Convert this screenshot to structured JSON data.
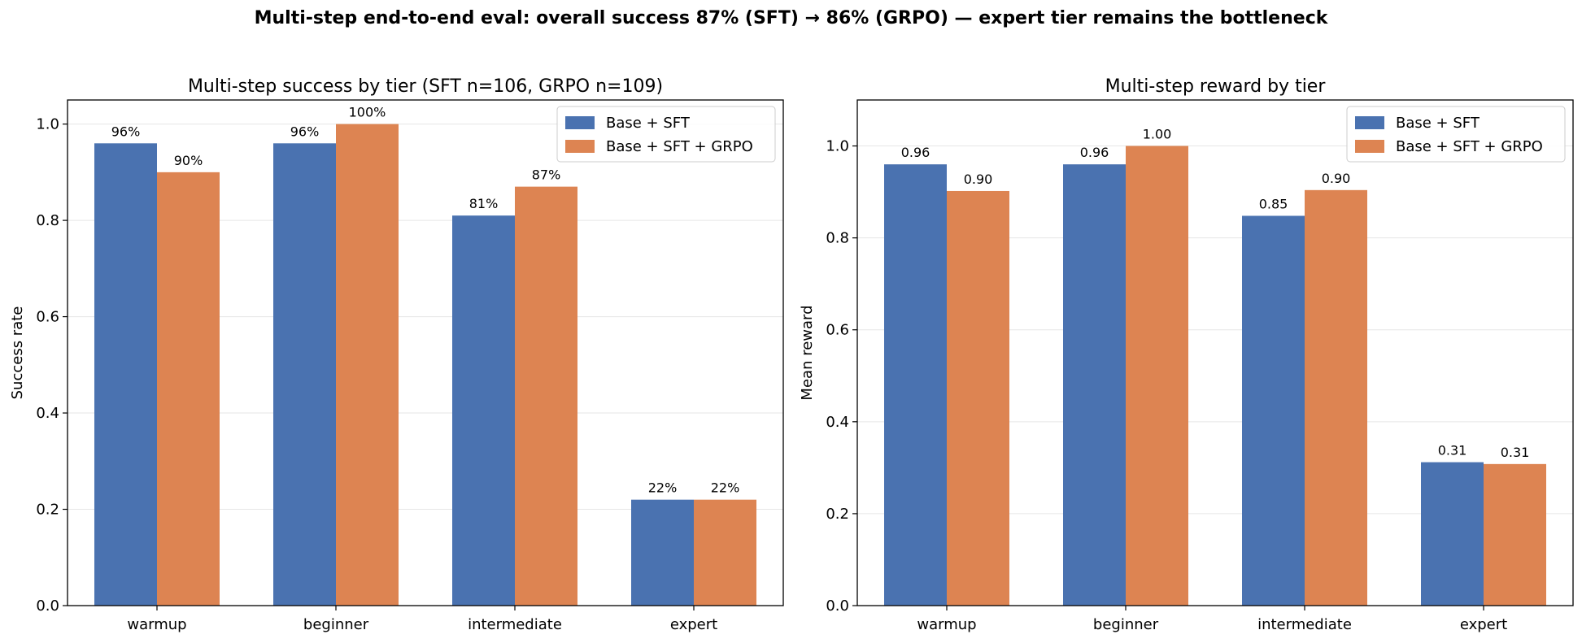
{
  "figure_title": "Multi-step end-to-end eval: overall success 87% (SFT) → 86% (GRPO) — expert tier remains the bottleneck",
  "colors": {
    "sft": "#4a72b0",
    "grpo": "#dd8452",
    "grid": "#e6e6e6"
  },
  "chart_data": [
    {
      "type": "bar",
      "title": "Multi-step success by tier (SFT n=106, GRPO n=109)",
      "xlabel": "",
      "ylabel": "Success rate",
      "categories": [
        "warmup",
        "beginner",
        "intermediate",
        "expert"
      ],
      "ylim": [
        0,
        1.05
      ],
      "yticks": [
        0.0,
        0.2,
        0.4,
        0.6,
        0.8,
        1.0
      ],
      "ytick_labels": [
        "0.0",
        "0.2",
        "0.4",
        "0.6",
        "0.8",
        "1.0"
      ],
      "grid": "y",
      "legend_position": "top-right",
      "series": [
        {
          "name": "Base + SFT",
          "color": "#4a72b0",
          "values": [
            0.96,
            0.96,
            0.81,
            0.22
          ],
          "labels": [
            "96%",
            "96%",
            "81%",
            "22%"
          ]
        },
        {
          "name": "Base + SFT + GRPO",
          "color": "#dd8452",
          "values": [
            0.9,
            1.0,
            0.87,
            0.22
          ],
          "labels": [
            "90%",
            "100%",
            "87%",
            "22%"
          ]
        }
      ]
    },
    {
      "type": "bar",
      "title": "Multi-step reward by tier",
      "xlabel": "",
      "ylabel": "Mean reward",
      "categories": [
        "warmup",
        "beginner",
        "intermediate",
        "expert"
      ],
      "ylim": [
        0,
        1.1
      ],
      "yticks": [
        0.0,
        0.2,
        0.4,
        0.6,
        0.8,
        1.0
      ],
      "ytick_labels": [
        "0.0",
        "0.2",
        "0.4",
        "0.6",
        "0.8",
        "1.0"
      ],
      "grid": "y",
      "legend_position": "top-right",
      "series": [
        {
          "name": "Base + SFT",
          "color": "#4a72b0",
          "values": [
            0.96,
            0.96,
            0.848,
            0.312
          ],
          "labels": [
            "0.96",
            "0.96",
            "0.85",
            "0.31"
          ]
        },
        {
          "name": "Base + SFT + GRPO",
          "color": "#dd8452",
          "values": [
            0.902,
            1.0,
            0.904,
            0.308
          ],
          "labels": [
            "0.90",
            "1.00",
            "0.90",
            "0.31"
          ]
        }
      ]
    }
  ]
}
